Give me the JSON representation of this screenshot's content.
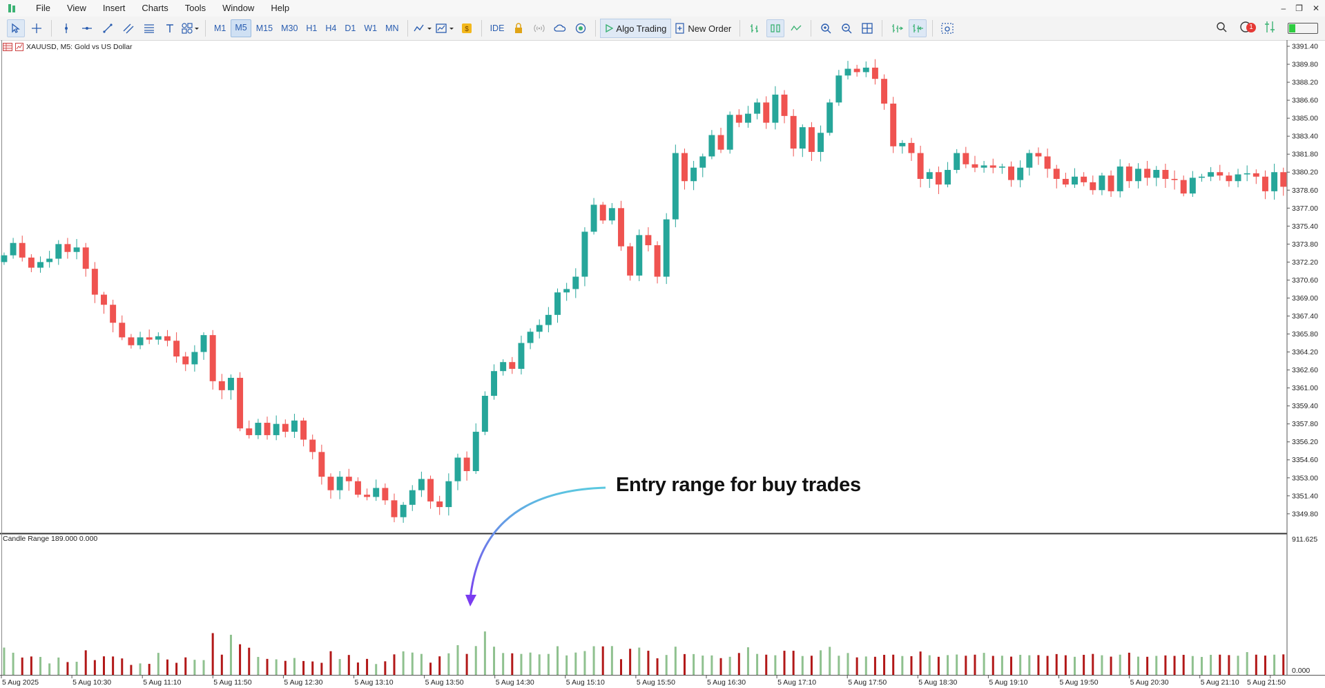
{
  "menu": [
    "File",
    "View",
    "Insert",
    "Charts",
    "Tools",
    "Window",
    "Help"
  ],
  "window_controls": [
    "–",
    "❐",
    "✕"
  ],
  "toolbar": {
    "timeframes": [
      "M1",
      "M5",
      "M15",
      "M30",
      "H1",
      "H4",
      "D1",
      "W1",
      "MN"
    ],
    "active_timeframe": "M5",
    "ide_label": "IDE",
    "algo_trading_label": "Algo Trading",
    "new_order_label": "New Order",
    "notification_count": "1"
  },
  "chart": {
    "symbol_label": "XAUUSD, M5:  Gold vs US Dollar",
    "indicator_label": "Candle Range 189.000 0.000",
    "annotation": "Entry range for buy trades",
    "colors": {
      "bull": "#26a69a",
      "bear": "#ef5350",
      "range_bull": "#8fc18f",
      "range_bear": "#b21818",
      "arrow_start": "#5bc8e0",
      "arrow_end": "#7a3cf0",
      "grid_line": "#000000"
    }
  },
  "chart_data": {
    "type": "candlestick",
    "price_axis_ticks": [
      "3391.40",
      "3389.80",
      "3388.20",
      "3386.60",
      "3385.00",
      "3383.40",
      "3381.80",
      "3380.20",
      "3378.60",
      "3377.00",
      "3375.40",
      "3373.80",
      "3372.20",
      "3370.60",
      "3369.00",
      "3367.40",
      "3365.80",
      "3364.20",
      "3362.60",
      "3361.00",
      "3359.40",
      "3357.80",
      "3356.20",
      "3354.60",
      "3353.00",
      "3351.40",
      "3349.80"
    ],
    "indicator_axis_ticks": [
      "911.625",
      "0.000"
    ],
    "indicator_ylim": [
      0,
      911.625
    ],
    "time_axis_ticks": [
      "5 Aug 2025",
      "5 Aug 10:30",
      "5 Aug 11:10",
      "5 Aug 11:50",
      "5 Aug 12:30",
      "5 Aug 13:10",
      "5 Aug 13:50",
      "5 Aug 14:30",
      "5 Aug 15:10",
      "5 Aug 15:50",
      "5 Aug 16:30",
      "5 Aug 17:10",
      "5 Aug 17:50",
      "5 Aug 18:30",
      "5 Aug 19:10",
      "5 Aug 19:50",
      "5 Aug 20:30",
      "5 Aug 21:10",
      "5 Aug 21:50"
    ],
    "closes": [
      3372.8,
      3373.9,
      3372.6,
      3371.7,
      3372.2,
      3372.5,
      3373.8,
      3373.1,
      3373.5,
      3371.6,
      3369.3,
      3368.4,
      3366.8,
      3365.5,
      3364.8,
      3365.5,
      3365.3,
      3365.6,
      3365.2,
      3363.8,
      3363.1,
      3364.2,
      3365.7,
      3361.6,
      3360.8,
      3361.9,
      3357.4,
      3356.8,
      3357.9,
      3356.8,
      3357.8,
      3357.1,
      3358.1,
      3356.4,
      3355.3,
      3353.1,
      3351.9,
      3353.1,
      3352.7,
      3351.5,
      3351.3,
      3352.1,
      3351.0,
      3349.5,
      3350.6,
      3351.9,
      3352.9,
      3350.9,
      3350.4,
      3352.7,
      3354.8,
      3353.6,
      3357.1,
      3360.3,
      3362.5,
      3363.3,
      3362.7,
      3365.0,
      3366.0,
      3366.6,
      3367.5,
      3369.5,
      3369.8,
      3370.9,
      3374.9,
      3377.3,
      3375.9,
      3377.0,
      3373.6,
      3371.0,
      3374.6,
      3373.7,
      3370.9,
      3376.0,
      3381.9,
      3379.4,
      3380.6,
      3381.6,
      3383.5,
      3382.2,
      3385.3,
      3384.6,
      3385.4,
      3386.4,
      3384.6,
      3387.1,
      3385.2,
      3382.3,
      3384.2,
      3382.0,
      3383.7,
      3386.4,
      3388.8,
      3389.4,
      3389.1,
      3389.5,
      3388.5,
      3386.3,
      3382.5,
      3382.8,
      3381.9,
      3379.6,
      3380.2,
      3379.1,
      3380.4,
      3381.9,
      3380.9,
      3380.6,
      3380.8,
      3380.6,
      3380.7,
      3379.5,
      3380.6,
      3381.9,
      3381.6,
      3380.5,
      3379.6,
      3379.1,
      3379.8,
      3379.3,
      3378.6,
      3379.9,
      3378.5,
      3380.7,
      3379.4,
      3380.5,
      3379.7,
      3380.4,
      3379.6,
      3379.5,
      3378.3,
      3379.7,
      3379.8,
      3380.2,
      3379.9,
      3379.4,
      3380.0,
      3380.1,
      3379.8,
      3378.5,
      3380.2,
      3378.9
    ],
    "ranges": [
      181,
      147,
      115,
      122,
      119,
      76,
      115,
      85,
      87,
      163,
      98,
      123,
      122,
      109,
      66,
      76,
      73,
      146,
      102,
      80,
      116,
      100,
      98,
      277,
      134,
      266,
      203,
      180,
      119,
      106,
      103,
      93,
      112,
      92,
      89,
      80,
      157,
      105,
      132,
      82,
      106,
      72,
      90,
      136,
      156,
      148,
      139,
      81,
      123,
      143,
      197,
      139,
      191,
      288,
      187,
      145,
      143,
      139,
      148,
      136,
      139,
      190,
      129,
      148,
      158,
      190,
      189,
      191,
      104,
      173,
      181,
      160,
      110,
      132,
      187,
      138,
      138,
      128,
      129,
      111,
      120,
      145,
      183,
      139,
      134,
      130,
      160,
      160,
      125,
      127,
      163,
      186,
      127,
      145,
      116,
      122,
      120,
      133,
      134,
      125,
      124,
      155,
      130,
      120,
      131,
      135,
      127,
      134,
      146,
      126,
      127,
      121,
      133,
      130,
      131,
      126,
      138,
      130,
      120,
      133,
      139,
      130,
      121,
      134,
      147,
      121,
      120,
      126,
      129,
      126,
      133,
      125,
      119,
      133,
      134,
      131,
      127,
      151,
      134,
      128,
      134,
      136
    ]
  }
}
